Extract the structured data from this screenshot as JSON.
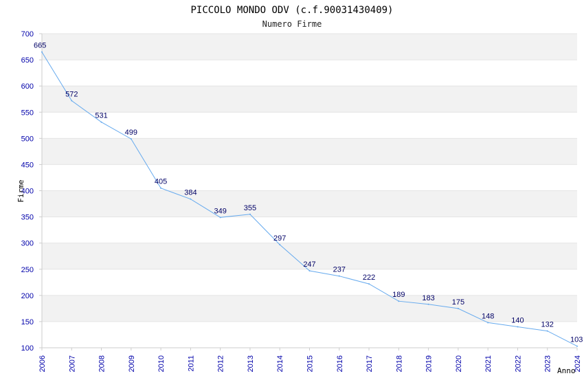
{
  "chart_data": {
    "type": "line",
    "title": "PICCOLO MONDO ODV (c.f.90031430409)",
    "subtitle": "Numero Firme",
    "xlabel": "Anno",
    "ylabel": "Firme",
    "ylim": [
      100,
      700
    ],
    "yticks": [
      "100",
      "150",
      "200",
      "250",
      "300",
      "350",
      "400",
      "450",
      "500",
      "550",
      "600",
      "650",
      "700"
    ],
    "grid": true,
    "categories": [
      "2006",
      "2007",
      "2008",
      "2009",
      "2010",
      "2011",
      "2012",
      "2013",
      "2014",
      "2015",
      "2016",
      "2017",
      "2018",
      "2019",
      "2020",
      "2021",
      "2022",
      "2023",
      "2024"
    ],
    "values": [
      665,
      572,
      531,
      499,
      405,
      384,
      349,
      355,
      297,
      247,
      237,
      222,
      189,
      183,
      175,
      148,
      140,
      132,
      103
    ],
    "colors": {
      "line": "#66aaee",
      "band": "#f2f2f2",
      "axis": "#cccccc",
      "tick_text": "#0000aa",
      "label_text": "#000066"
    }
  }
}
